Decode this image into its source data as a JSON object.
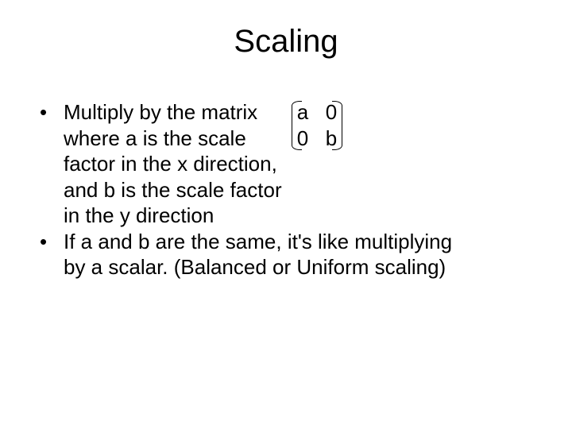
{
  "title": "Scaling",
  "bullets": [
    {
      "marker": "•",
      "lines": [
        "Multiply by the matrix",
        "where a is the scale",
        "factor in the x direction,",
        "and b is the scale factor",
        "in the y direction"
      ]
    },
    {
      "marker": "•",
      "lines": [
        "If a and b are the same, it's like multiplying",
        "by a scalar. (Balanced or Uniform scaling)"
      ]
    }
  ],
  "matrix": {
    "rows": [
      [
        "a",
        "0"
      ],
      [
        "0",
        "b"
      ]
    ]
  },
  "style": {
    "background_color": "#ffffff",
    "text_color": "#000000",
    "title_fontsize": 40,
    "body_fontsize": 26,
    "font_family": "Arial"
  }
}
